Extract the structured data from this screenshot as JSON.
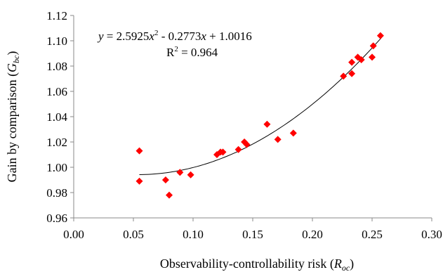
{
  "chart_data": {
    "type": "scatter",
    "xlabel": {
      "main": "Observability-controllability risk (",
      "var": "R",
      "sub": "oc",
      "close": ")"
    },
    "ylabel": {
      "main": "Gain by comparison (",
      "var": "G",
      "sub": "bc",
      "close": ")"
    },
    "xlim": [
      0.0,
      0.3
    ],
    "ylim": [
      0.96,
      1.12
    ],
    "xticks": [
      "0.00",
      "0.05",
      "0.10",
      "0.15",
      "0.20",
      "0.25",
      "0.30"
    ],
    "yticks": [
      "0.96",
      "0.98",
      "1.00",
      "1.02",
      "1.04",
      "1.06",
      "1.08",
      "1.10",
      "1.12"
    ],
    "grid": false,
    "marker": "diamond",
    "marker_color": "#ff0000",
    "trendline_color": "#000000",
    "equation": {
      "y": "y",
      "eq1": " = 2.5925",
      "x1": "x",
      "sup": "2",
      "eq2": " - 0.2773",
      "x2": "x",
      "eq3": " + 1.0016",
      "r2_main": "R",
      "r2_sup": "2",
      "r2_val": " = 0.964"
    },
    "trendline": {
      "a": 2.5925,
      "b": -0.2773,
      "c": 1.0016,
      "x_range": [
        0.055,
        0.258
      ]
    },
    "points": [
      {
        "x": 0.055,
        "y": 1.013
      },
      {
        "x": 0.055,
        "y": 0.989
      },
      {
        "x": 0.077,
        "y": 0.99
      },
      {
        "x": 0.08,
        "y": 0.978
      },
      {
        "x": 0.089,
        "y": 0.996
      },
      {
        "x": 0.098,
        "y": 0.994
      },
      {
        "x": 0.12,
        "y": 1.01
      },
      {
        "x": 0.123,
        "y": 1.012
      },
      {
        "x": 0.125,
        "y": 1.012
      },
      {
        "x": 0.138,
        "y": 1.014
      },
      {
        "x": 0.143,
        "y": 1.02
      },
      {
        "x": 0.145,
        "y": 1.018
      },
      {
        "x": 0.162,
        "y": 1.034
      },
      {
        "x": 0.171,
        "y": 1.022
      },
      {
        "x": 0.184,
        "y": 1.027
      },
      {
        "x": 0.226,
        "y": 1.072
      },
      {
        "x": 0.233,
        "y": 1.083
      },
      {
        "x": 0.233,
        "y": 1.074
      },
      {
        "x": 0.238,
        "y": 1.087
      },
      {
        "x": 0.241,
        "y": 1.085
      },
      {
        "x": 0.25,
        "y": 1.087
      },
      {
        "x": 0.251,
        "y": 1.096
      },
      {
        "x": 0.257,
        "y": 1.104
      }
    ]
  }
}
